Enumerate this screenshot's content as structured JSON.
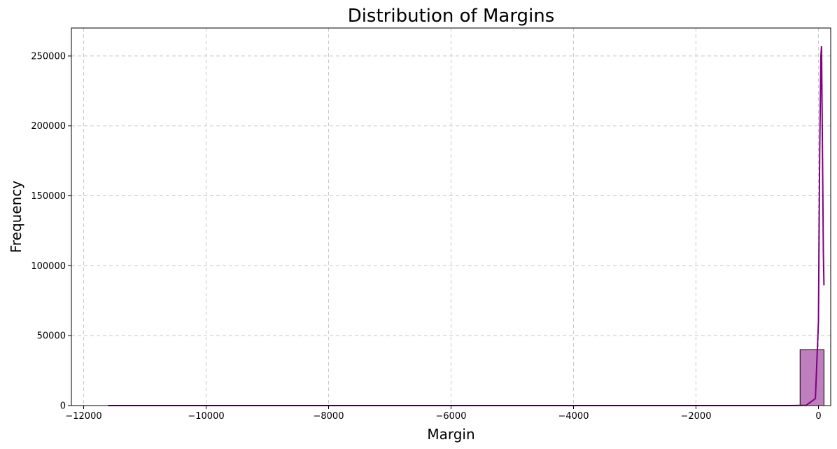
{
  "chart_data": {
    "type": "bar",
    "title": "Distribution of Margins",
    "xlabel": "Margin",
    "ylabel": "Frequency",
    "xlim": [
      -12200,
      200
    ],
    "ylim": [
      0,
      270000
    ],
    "x_ticks": [
      -12000,
      -10000,
      -8000,
      -6000,
      -4000,
      -2000,
      0
    ],
    "x_tick_labels": [
      "−12000",
      "−10000",
      "−8000",
      "−6000",
      "−4000",
      "−2000",
      "0"
    ],
    "y_ticks": [
      0,
      50000,
      100000,
      150000,
      200000,
      250000
    ],
    "y_tick_labels": [
      "0",
      "50000",
      "100000",
      "150000",
      "200000",
      "250000"
    ],
    "grid": true,
    "bar_color": "#bf7fbf",
    "bar_edge_color": "#000000",
    "kde_color": "#800080",
    "bins": [
      {
        "x0": -11600,
        "x1": -11210,
        "count": 1
      },
      {
        "x0": -2250,
        "x1": -1860,
        "count": 5
      },
      {
        "x0": -1860,
        "x1": -1470,
        "count": 10
      },
      {
        "x0": -1470,
        "x1": -1080,
        "count": 20
      },
      {
        "x0": -1080,
        "x1": -690,
        "count": 60
      },
      {
        "x0": -690,
        "x1": -300,
        "count": 250
      },
      {
        "x0": -300,
        "x1": 90,
        "count": 40000
      }
    ],
    "kde": {
      "x": [
        -11600,
        -10000,
        -8000,
        -6000,
        -4000,
        -2000,
        -500,
        -200,
        -50,
        0,
        20,
        40,
        50,
        60,
        70,
        80,
        90
      ],
      "y": [
        0,
        0,
        0,
        0,
        0,
        0,
        0,
        200,
        5000,
        60000,
        180000,
        250000,
        257000,
        210000,
        160000,
        110000,
        86000
      ]
    }
  }
}
